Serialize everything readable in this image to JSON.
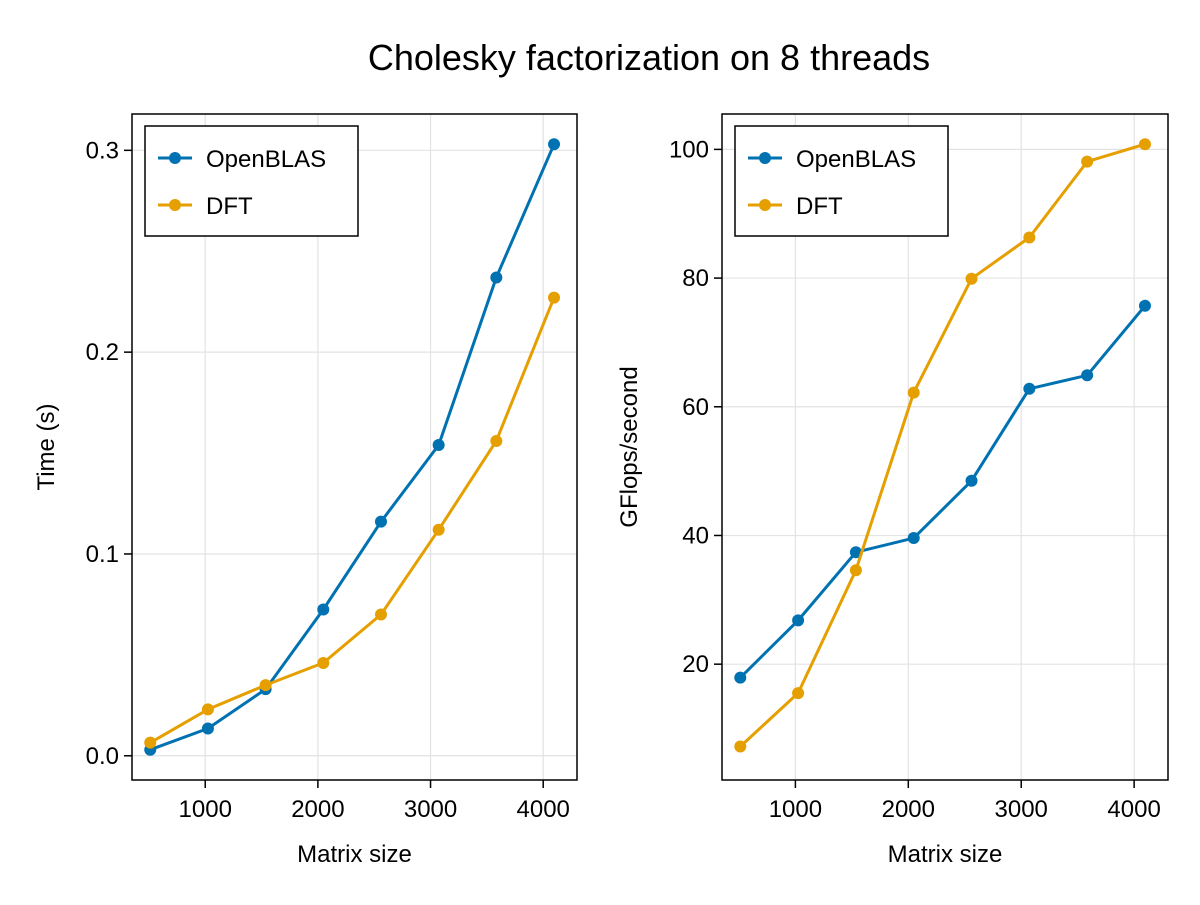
{
  "figure": {
    "title": "Cholesky factorization on 8 threads"
  },
  "colors": {
    "OpenBLAS": "#0072b2",
    "DFT": "#e69f00",
    "grid": "#e3e3e3",
    "frame": "#000000"
  },
  "chart_data": [
    {
      "type": "line",
      "title": "",
      "xlabel": "Matrix size",
      "ylabel": "Time (s)",
      "xlim": [
        350,
        4300
      ],
      "ylim": [
        -0.012,
        0.318
      ],
      "xticks": [
        1000,
        2000,
        3000,
        4000
      ],
      "xtick_labels": [
        "1000",
        "2000",
        "3000",
        "4000"
      ],
      "yticks": [
        0.0,
        0.1,
        0.2,
        0.3
      ],
      "ytick_labels": [
        "0.0",
        "0.1",
        "0.2",
        "0.3"
      ],
      "grid": true,
      "legend": "top-left",
      "x": [
        512,
        1024,
        1536,
        2048,
        2560,
        3072,
        3584,
        4096
      ],
      "series": [
        {
          "name": "OpenBLAS",
          "values": [
            0.003,
            0.0135,
            0.033,
            0.0725,
            0.116,
            0.154,
            0.237,
            0.303
          ]
        },
        {
          "name": "DFT",
          "values": [
            0.0065,
            0.023,
            0.035,
            0.046,
            0.07,
            0.112,
            0.156,
            0.227
          ]
        }
      ]
    },
    {
      "type": "line",
      "title": "",
      "xlabel": "Matrix size",
      "ylabel": "GFlops/second",
      "xlim": [
        350,
        4300
      ],
      "ylim": [
        2,
        105.5
      ],
      "xticks": [
        1000,
        2000,
        3000,
        4000
      ],
      "xtick_labels": [
        "1000",
        "2000",
        "3000",
        "4000"
      ],
      "yticks": [
        20,
        40,
        60,
        80,
        100
      ],
      "ytick_labels": [
        "20",
        "40",
        "60",
        "80",
        "100"
      ],
      "grid": true,
      "legend": "top-left",
      "x": [
        512,
        1024,
        1536,
        2048,
        2560,
        3072,
        3584,
        4096
      ],
      "series": [
        {
          "name": "OpenBLAS",
          "values": [
            17.9,
            26.8,
            37.4,
            39.6,
            48.5,
            62.8,
            64.9,
            75.7
          ]
        },
        {
          "name": "DFT",
          "values": [
            7.2,
            15.5,
            34.6,
            62.2,
            79.9,
            86.3,
            98.1,
            100.8
          ]
        }
      ]
    }
  ]
}
